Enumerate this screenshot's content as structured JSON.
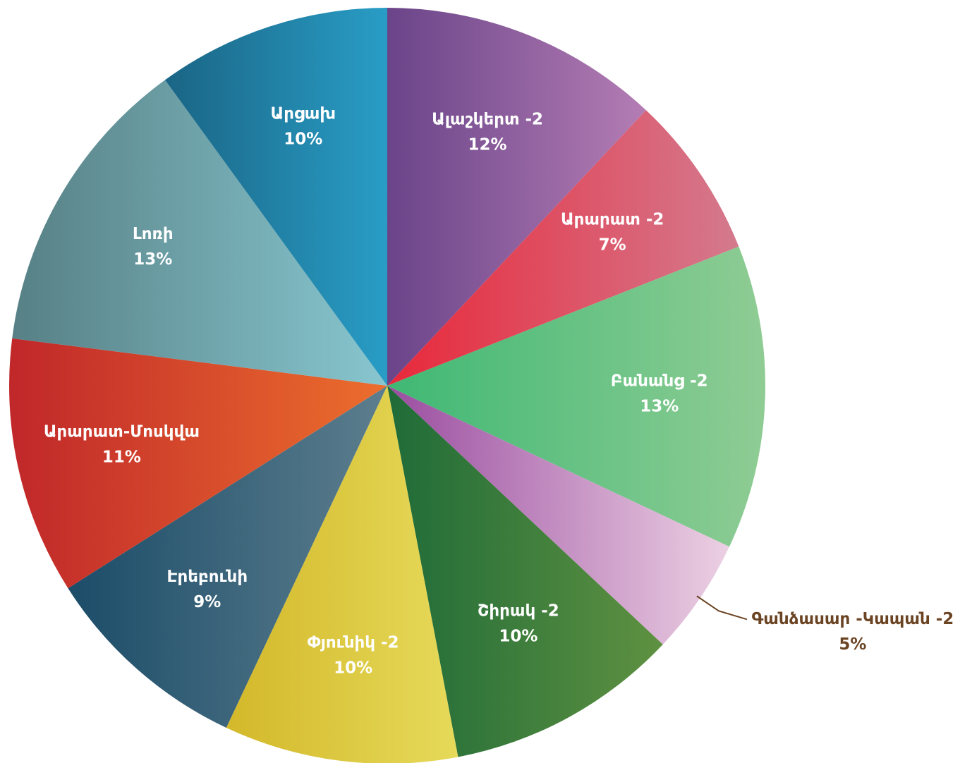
{
  "chart_data": {
    "type": "pie",
    "categories": [
      "Ալաշկերտ -2",
      "Արարատ -2",
      "Բանանց -2",
      "Գանձասար -Կապան -2",
      "Շիրակ -2",
      "Փյունիկ -2",
      "Էրեբունի",
      "Արարատ-Մոսկվա",
      "Լոռի",
      "Արցախ"
    ],
    "values": [
      12,
      7,
      13,
      5,
      10,
      10,
      9,
      11,
      13,
      10
    ],
    "value_labels": [
      "12%",
      "7%",
      "13%",
      "5%",
      "10%",
      "10%",
      "9%",
      "11%",
      "13%",
      "10%"
    ],
    "colors": [
      [
        "#6a4489",
        "#b47db4"
      ],
      [
        "#e8283a",
        "#d47a8e"
      ],
      [
        "#3fb874",
        "#8fcc94"
      ],
      [
        "#9a4da0",
        "#ecd0e3"
      ],
      [
        "#1f6b38",
        "#5f9141"
      ],
      [
        "#d3b82a",
        "#e6da5a"
      ],
      [
        "#1b4c68",
        "#5d7e8e"
      ],
      [
        "#c0272a",
        "#ec6e2d"
      ],
      [
        "#568085",
        "#88c6cf"
      ],
      [
        "#1a6585",
        "#299dc6"
      ]
    ],
    "label_color": "#ffffff",
    "outside_label_color": "#6b4423"
  }
}
